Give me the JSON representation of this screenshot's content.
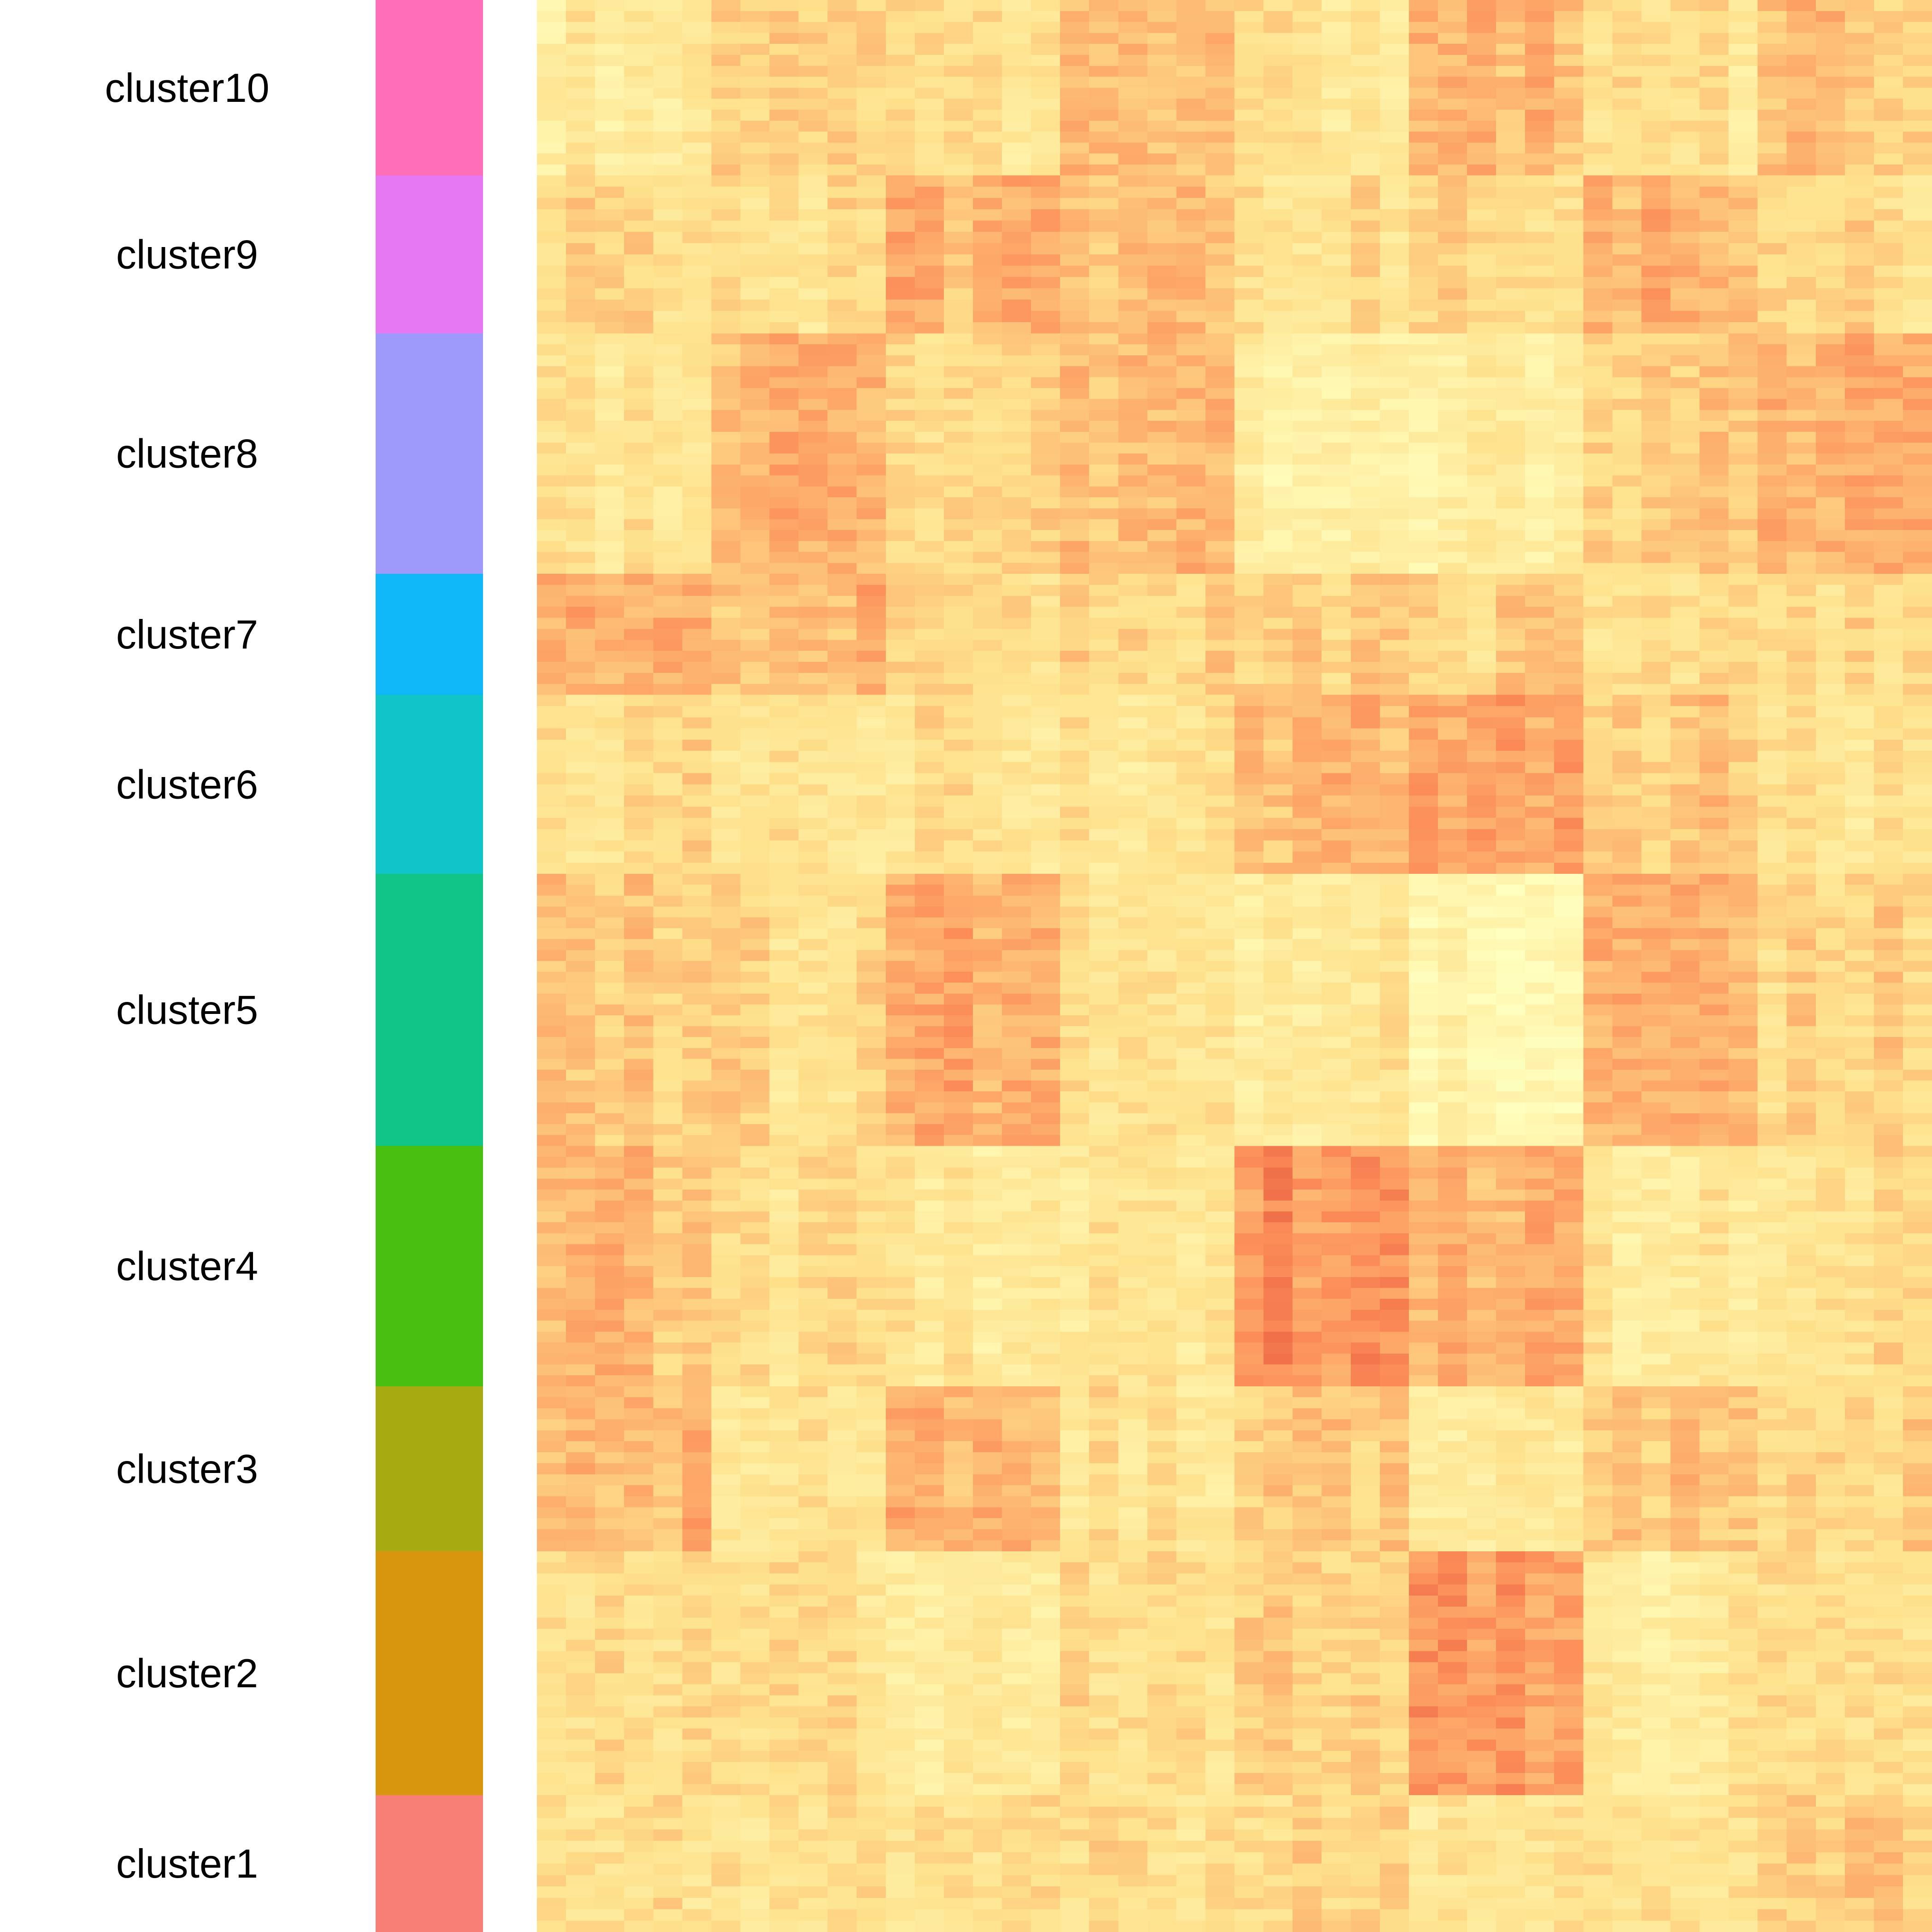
{
  "chart_data": {
    "type": "heatmap",
    "title": "",
    "xlabel": "",
    "ylabel": "",
    "legend": "none",
    "grid": false,
    "row_annotation": {
      "name": "",
      "categories": [
        {
          "label": "cluster10",
          "color": "#FF6EB8",
          "rows": 1000
        },
        {
          "label": "cluster9",
          "color": "#E778F4",
          "rows": 900
        },
        {
          "label": "cluster8",
          "color": "#9E9AFC",
          "rows": 1370
        },
        {
          "label": "cluster7",
          "color": "#10B7F8",
          "rows": 690
        },
        {
          "label": "cluster6",
          "color": "#10C4C8",
          "rows": 1020
        },
        {
          "label": "cluster5",
          "color": "#10C488",
          "rows": 1550
        },
        {
          "label": "cluster4",
          "color": "#48BE11",
          "rows": 1370
        },
        {
          "label": "cluster3",
          "color": "#A8AA12",
          "rows": 940
        },
        {
          "label": "cluster2",
          "color": "#D8960F",
          "rows": 1390
        },
        {
          "label": "cluster1",
          "color": "#F87F76",
          "rows": 780
        }
      ]
    },
    "column_groups": [
      {
        "name": "",
        "columns": 6
      },
      {
        "name": "",
        "columns": 6
      },
      {
        "name": "",
        "columns": 6
      },
      {
        "name": "",
        "columns": 6
      },
      {
        "name": "",
        "columns": 6
      },
      {
        "name": "",
        "columns": 6
      },
      {
        "name": "",
        "columns": 6
      },
      {
        "name": "",
        "columns": 6
      }
    ],
    "value_scale": {
      "min": -2,
      "max": 2,
      "colors": [
        "#91CF60",
        "#D9EF8B",
        "#FFFFBF",
        "#FEE08B",
        "#FC8D59",
        "#D73027"
      ]
    },
    "block_means": [
      [
        0.2,
        0.6,
        0.3,
        0.7,
        0.3,
        0.8,
        0.3,
        0.7
      ],
      [
        0.4,
        0.4,
        0.8,
        0.7,
        0.4,
        0.4,
        0.8,
        0.4
      ],
      [
        0.3,
        0.8,
        0.5,
        0.8,
        0.0,
        0.0,
        0.6,
        0.8
      ],
      [
        0.8,
        0.8,
        0.4,
        0.5,
        0.5,
        0.5,
        0.3,
        0.4
      ],
      [
        0.4,
        0.3,
        0.3,
        0.3,
        0.8,
        0.9,
        0.6,
        0.3
      ],
      [
        0.6,
        0.4,
        0.9,
        0.4,
        0.2,
        -0.1,
        0.8,
        0.5
      ],
      [
        0.7,
        0.3,
        0.2,
        0.2,
        1.1,
        0.8,
        0.2,
        0.4
      ],
      [
        0.8,
        0.3,
        0.8,
        0.3,
        0.6,
        0.2,
        0.7,
        0.5
      ],
      [
        0.3,
        0.4,
        0.1,
        0.4,
        0.6,
        1.1,
        0.2,
        0.5
      ],
      [
        0.3,
        0.3,
        0.4,
        0.4,
        0.5,
        0.2,
        0.4,
        0.6
      ]
    ]
  }
}
